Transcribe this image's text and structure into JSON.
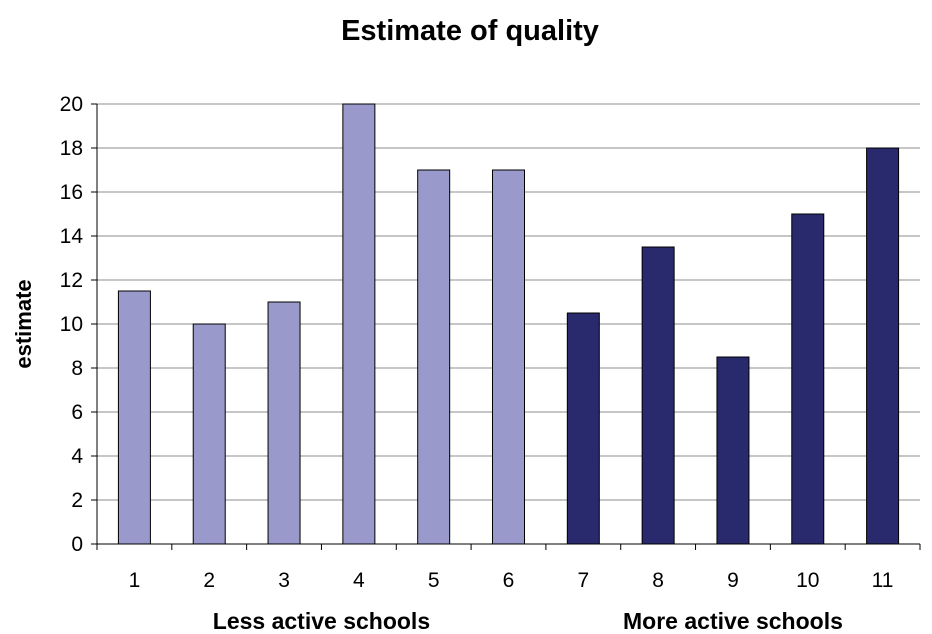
{
  "chart_data": {
    "type": "bar",
    "title": "Estimate of quality",
    "xlabel": "",
    "ylabel": "estimate",
    "ylim": [
      0,
      20
    ],
    "ytick_step": 2,
    "grid": true,
    "categories": [
      "1",
      "2",
      "3",
      "4",
      "5",
      "6",
      "7",
      "8",
      "9",
      "10",
      "11"
    ],
    "values": [
      11.5,
      10,
      11,
      20,
      17,
      17,
      10.5,
      13.5,
      8.5,
      15,
      18
    ],
    "groups": [
      {
        "label": "Less active schools",
        "categories": [
          "1",
          "2",
          "3",
          "4",
          "5",
          "6"
        ],
        "color": "#9999cc"
      },
      {
        "label": "More active schools",
        "categories": [
          "7",
          "8",
          "9",
          "10",
          "11"
        ],
        "color": "#29296e"
      }
    ]
  }
}
